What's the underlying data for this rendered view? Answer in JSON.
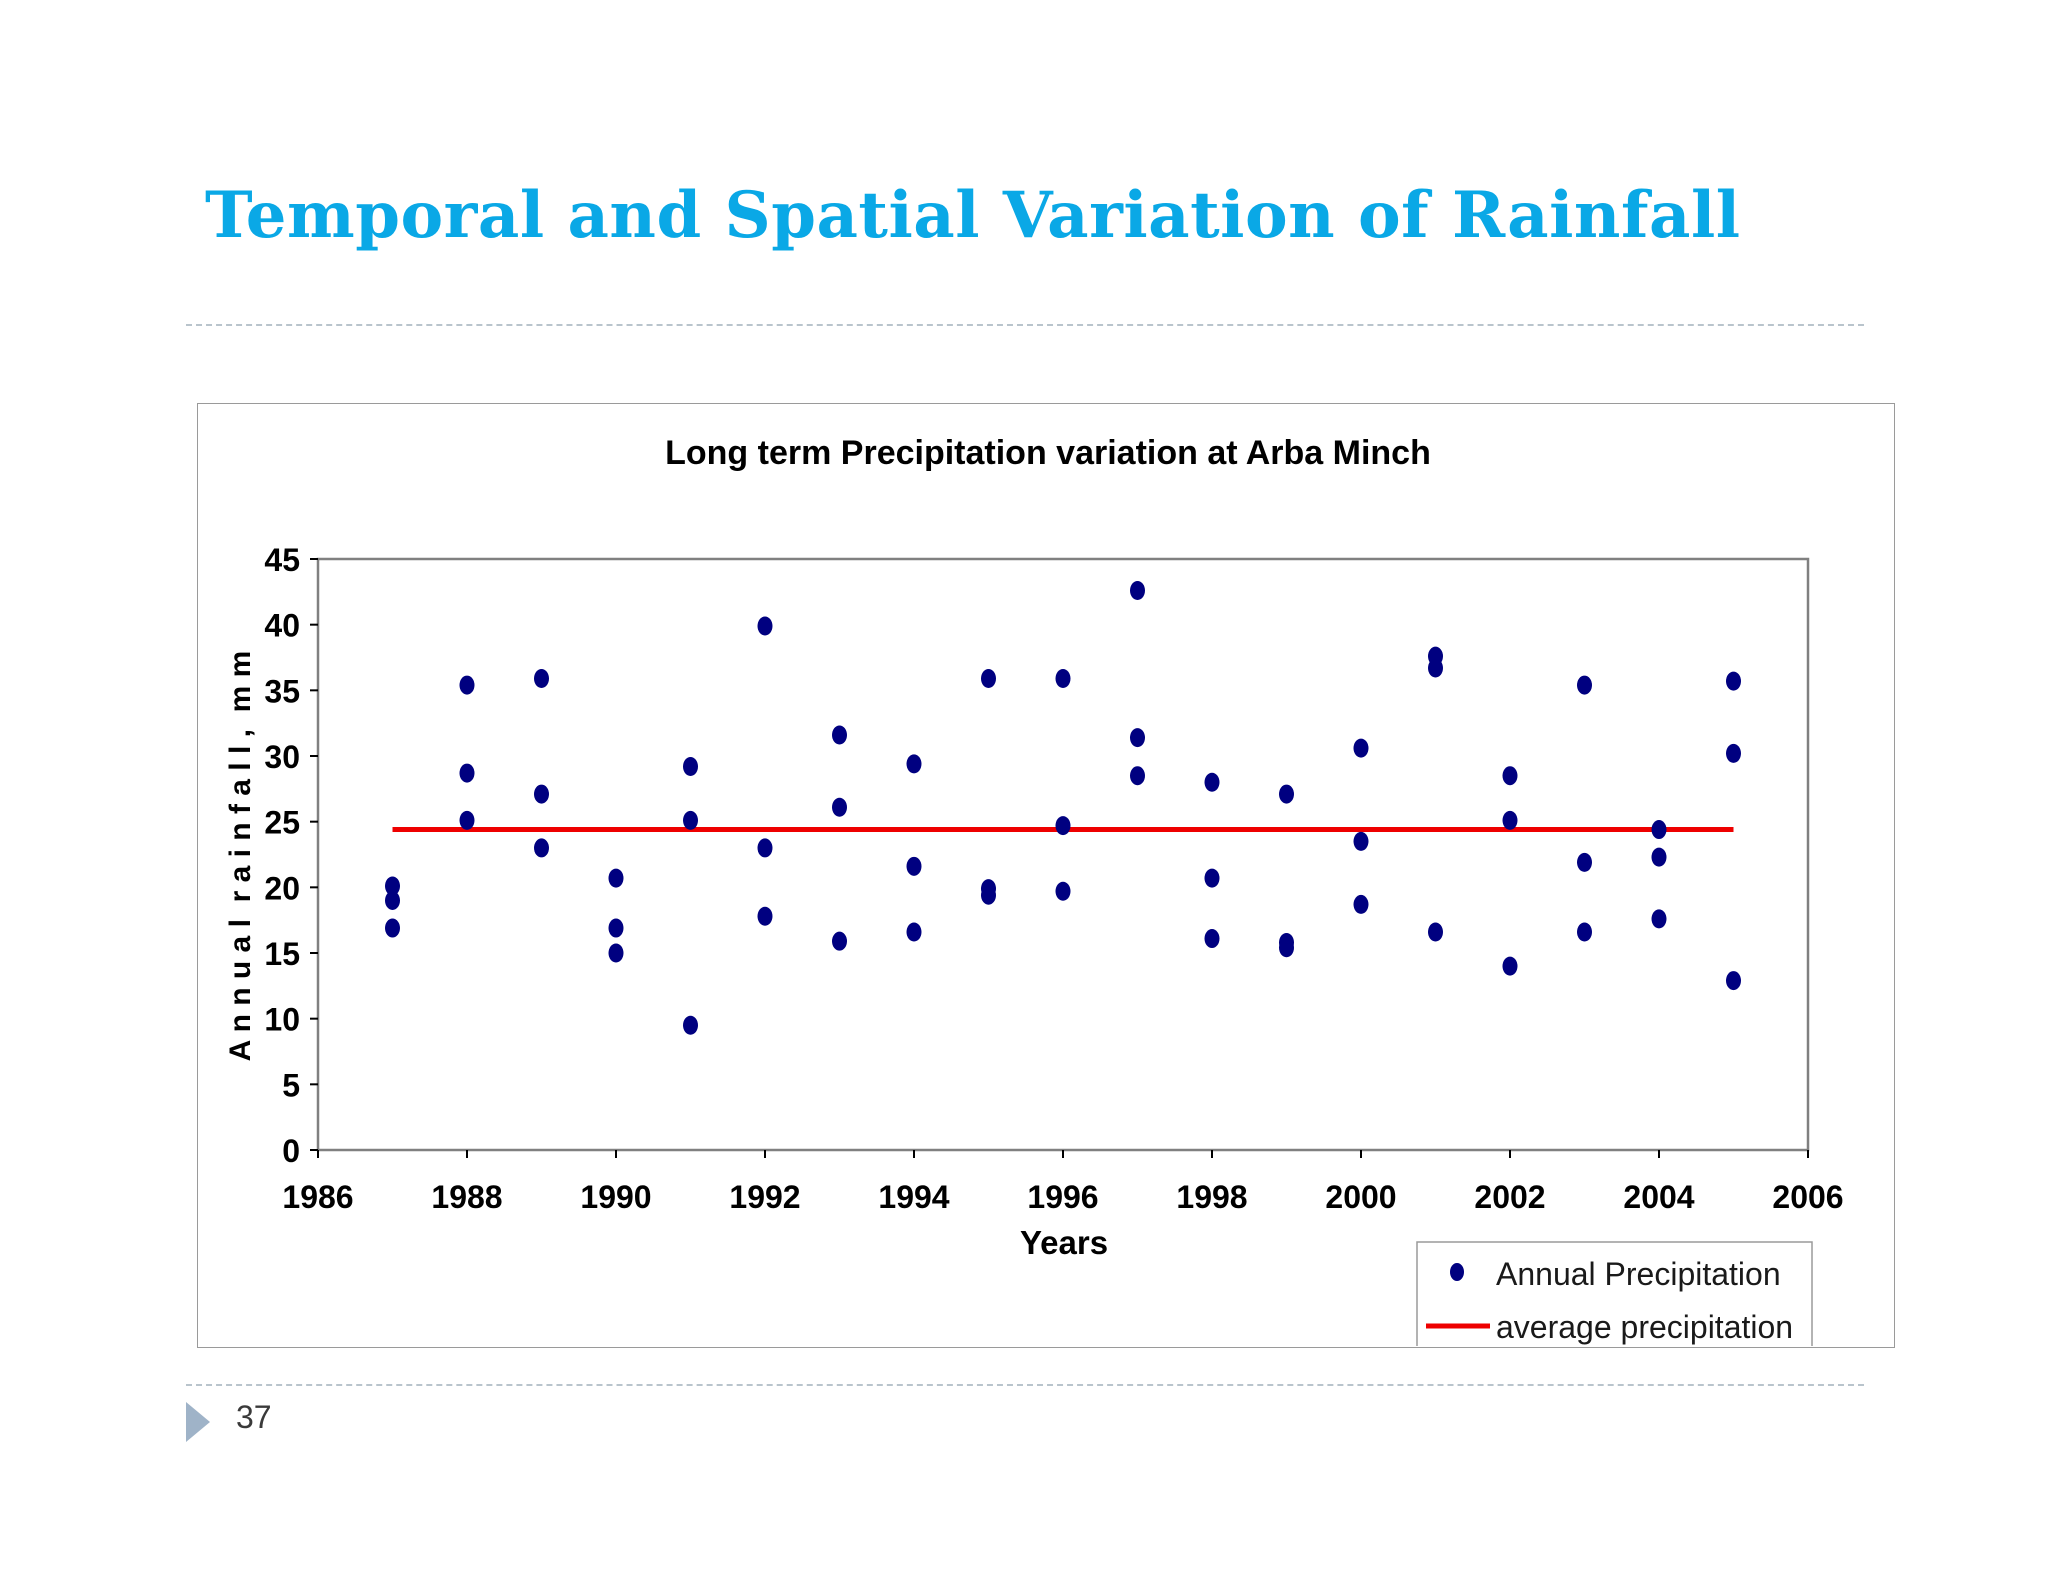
{
  "slide": {
    "title": "Temporal and Spatial Variation of Rainfall",
    "page_number": "37"
  },
  "chart_data": {
    "type": "scatter",
    "title": "Long term Precipitation variation at Arba Minch",
    "xlabel": "Years",
    "ylabel": "A n n u a l  r a i n f a l l ,  m m",
    "xlim": [
      1986,
      2006
    ],
    "ylim": [
      0,
      45
    ],
    "xticks": [
      1986,
      1988,
      1990,
      1992,
      1994,
      1996,
      1998,
      2000,
      2002,
      2004,
      2006
    ],
    "yticks": [
      0,
      5,
      10,
      15,
      20,
      25,
      30,
      35,
      40,
      45
    ],
    "grid": false,
    "legend_position": "bottom-right",
    "series": [
      {
        "name": "Annual Precipitation",
        "type": "scatter",
        "color": "#000080",
        "points": [
          [
            1987,
            20.1
          ],
          [
            1987,
            19.0
          ],
          [
            1987,
            16.9
          ],
          [
            1988,
            35.4
          ],
          [
            1988,
            28.7
          ],
          [
            1988,
            25.1
          ],
          [
            1989,
            35.9
          ],
          [
            1989,
            27.1
          ],
          [
            1989,
            23.0
          ],
          [
            1990,
            20.7
          ],
          [
            1990,
            16.9
          ],
          [
            1990,
            15.0
          ],
          [
            1991,
            29.2
          ],
          [
            1991,
            25.1
          ],
          [
            1991,
            9.5
          ],
          [
            1992,
            39.9
          ],
          [
            1992,
            23.0
          ],
          [
            1992,
            17.8
          ],
          [
            1993,
            31.6
          ],
          [
            1993,
            26.1
          ],
          [
            1993,
            15.9
          ],
          [
            1994,
            29.4
          ],
          [
            1994,
            21.6
          ],
          [
            1994,
            16.6
          ],
          [
            1995,
            35.9
          ],
          [
            1995,
            19.9
          ],
          [
            1995,
            19.4
          ],
          [
            1996,
            35.9
          ],
          [
            1996,
            24.7
          ],
          [
            1996,
            19.7
          ],
          [
            1997,
            42.6
          ],
          [
            1997,
            31.4
          ],
          [
            1997,
            28.5
          ],
          [
            1998,
            28.0
          ],
          [
            1998,
            20.7
          ],
          [
            1998,
            16.1
          ],
          [
            1999,
            27.1
          ],
          [
            1999,
            15.8
          ],
          [
            1999,
            15.4
          ],
          [
            2000,
            30.6
          ],
          [
            2000,
            23.5
          ],
          [
            2000,
            18.7
          ],
          [
            2001,
            37.6
          ],
          [
            2001,
            36.7
          ],
          [
            2001,
            16.6
          ],
          [
            2002,
            28.5
          ],
          [
            2002,
            25.1
          ],
          [
            2002,
            14.0
          ],
          [
            2003,
            35.4
          ],
          [
            2003,
            21.9
          ],
          [
            2003,
            16.6
          ],
          [
            2004,
            24.4
          ],
          [
            2004,
            22.3
          ],
          [
            2004,
            17.6
          ],
          [
            2005,
            35.7
          ],
          [
            2005,
            30.2
          ],
          [
            2005,
            12.9
          ]
        ]
      },
      {
        "name": "average precipitation",
        "type": "line",
        "color": "#ee0000",
        "x": [
          1987,
          2005
        ],
        "y": [
          24.4,
          24.4
        ]
      }
    ]
  }
}
